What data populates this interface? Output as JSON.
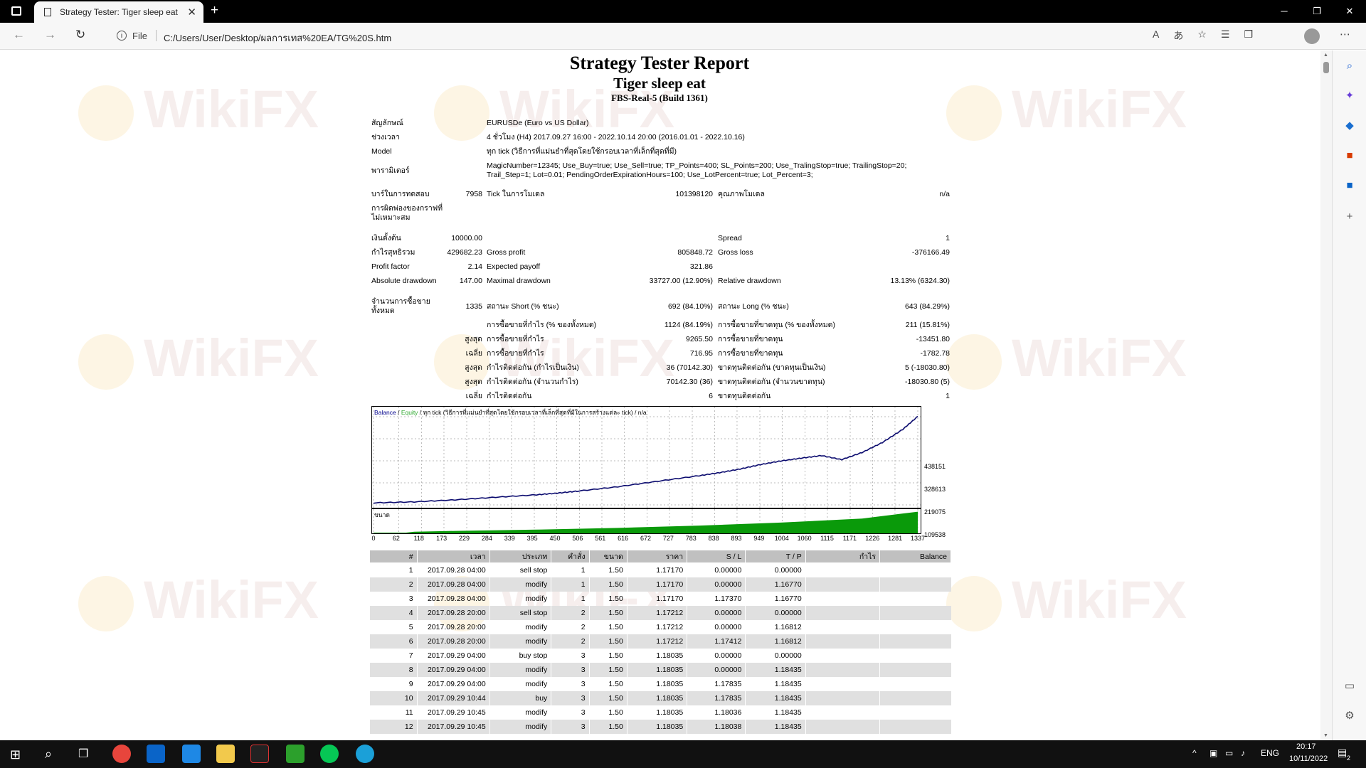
{
  "browser": {
    "tab_title": "Strategy Tester: Tiger sleep eat",
    "new_tab": "+",
    "file_label": "File",
    "url": "C:/Users/User/Desktop/ผลการเทส%20EA/TG%20S.htm"
  },
  "report": {
    "title": "Strategy Tester Report",
    "ea_name": "Tiger sleep eat",
    "server": "FBS-Real-5 (Build 1361)"
  },
  "info": [
    {
      "label": "สัญลักษณ์",
      "value": "EURUSDe (Euro vs US Dollar)"
    },
    {
      "label": "ช่วงเวลา",
      "value": "4 ชั่วโมง (H4) 2017.09.27 16:00 - 2022.10.14 20:00 (2016.01.01 - 2022.10.16)"
    },
    {
      "label": "Model",
      "value": "ทุก tick (วิธีการที่แม่นยำที่สุดโดยใช้กรอบเวลาที่เล็กที่สุดที่มี)"
    },
    {
      "label": "พารามิเตอร์",
      "value": "MagicNumber=12345; Use_Buy=true; Use_Sell=true; TP_Points=400; SL_Points=200; Use_TralingStop=true; TrailingStop=20;",
      "value2": "Trail_Step=1; Lot=0.01; PendingOrderExpirationHours=100; Use_LotPercent=true; Lot_Percent=3;"
    }
  ],
  "bars_row": {
    "bars_label": "บาร์ในการทดสอบ",
    "bars_value": "7958",
    "ticks_label": "Tick ในการโมเดล",
    "ticks_value": "101398120",
    "quality_label": "คุณภาพโมเดล",
    "quality_value": "n/a",
    "mismatch_label1": "การผิดพ่องของกราฟที่",
    "mismatch_label2": "ไม่เหมาะสม"
  },
  "stats": {
    "deposit_label": "เงินตั้งต้น",
    "deposit": "10000.00",
    "spread_label": "Spread",
    "spread": "1",
    "net_label": "กำไรสุทธิรวม",
    "net": "429682.23",
    "gp_label": "Gross profit",
    "gp": "805848.72",
    "gl_label": "Gross loss",
    "gl": "-376166.49",
    "pf_label": "Profit factor",
    "pf": "2.14",
    "ep_label": "Expected payoff",
    "ep": "321.86",
    "ad_label": "Absolute drawdown",
    "ad": "147.00",
    "md_label": "Maximal drawdown",
    "md": "33727.00 (12.90%)",
    "rd_label": "Relative drawdown",
    "rd": "13.13% (6324.30)",
    "total_label1": "จำนวนการซื้อขาย",
    "total_label2": "ทั้งหมด",
    "total": "1335",
    "short_label": "สถานะ Short (% ชนะ)",
    "short": "692 (84.10%)",
    "long_label": "สถานะ Long (% ชนะ)",
    "long": "643 (84.29%)",
    "win_label": "การซื้อขายที่กำไร (% ของทั้งหมด)",
    "win": "1124 (84.19%)",
    "loss_label": "การซื้อขายที่ขาดทุน (% ของทั้งหมด)",
    "loss": "211 (15.81%)",
    "max_label": "สูงสุด",
    "avg_label": "เฉลี่ย",
    "lp_label": "การซื้อขายที่กำไร",
    "lp": "9265.50",
    "ll_label": "การซื้อขายที่ขาดทุน",
    "ll": "-13451.80",
    "ap": "716.95",
    "al": "-1782.78",
    "mcw_label": "กำไรติดต่อกัน (กำไรเป็นเงิน)",
    "mcw": "36 (70142.30)",
    "mcl_label": "ขาดทุนติดต่อกัน (ขาดทุนเป็นเงิน)",
    "mcl": "5 (-18030.80)",
    "mcp_label": "กำไรติดต่อกัน (จำนวนกำไร)",
    "mcp": "70142.30 (36)",
    "mcll_label": "ขาดทุนติดต่อกัน (จำนวนขาดทุน)",
    "mcll": "-18030.80 (5)",
    "acw_label": "กำไรติดต่อกัน",
    "acw": "6",
    "acl_label": "ขาดทุนติดต่อกัน",
    "acl": "1"
  },
  "chart_data": {
    "type": "line",
    "legend_balance": "Balance",
    "legend_sep": " / ",
    "legend_equity": "Equity",
    "legend_rest": " / ทุก tick (วิธีการที่แม่นยำที่สุดโดยใช้กรอบเวลาที่เล็กที่สุดที่มีในการสร้างแต่ละ tick) / n/a",
    "volume_label": "ขนาด",
    "y_ticks": [
      "438151",
      "328613",
      "219075",
      "109538",
      "0"
    ],
    "x_ticks": [
      "0",
      "62",
      "118",
      "173",
      "229",
      "284",
      "339",
      "395",
      "450",
      "506",
      "561",
      "616",
      "672",
      "727",
      "783",
      "838",
      "893",
      "949",
      "1004",
      "1060",
      "1115",
      "1171",
      "1226",
      "1281",
      "1337"
    ],
    "ylim": [
      0,
      438151
    ],
    "xlim": [
      0,
      1337
    ],
    "series": [
      {
        "name": "Balance",
        "x": [
          0,
          100,
          200,
          300,
          400,
          450,
          500,
          600,
          700,
          800,
          850,
          900,
          950,
          1000,
          1050,
          1100,
          1150,
          1200,
          1250,
          1300,
          1337
        ],
        "values": [
          10000,
          15000,
          25000,
          38000,
          50000,
          58000,
          68000,
          90000,
          118000,
          145000,
          160000,
          178000,
          200000,
          218000,
          232000,
          245000,
          225000,
          260000,
          310000,
          375000,
          439682
        ]
      }
    ],
    "volume": {
      "x": [
        0,
        80,
        100,
        200,
        400,
        600,
        800,
        1000,
        1200,
        1337
      ],
      "values": [
        0,
        0,
        0.04,
        0.08,
        0.14,
        0.22,
        0.33,
        0.47,
        0.66,
        0.98
      ]
    }
  },
  "table": {
    "headers": [
      "#",
      "เวลา",
      "ประเภท",
      "คำสั่ง",
      "ขนาด",
      "ราคา",
      "S / L",
      "T / P",
      "กำไร",
      "Balance"
    ],
    "rows": [
      [
        "1",
        "2017.09.28 04:00",
        "sell stop",
        "1",
        "1.50",
        "1.17170",
        "0.00000",
        "0.00000",
        "",
        ""
      ],
      [
        "2",
        "2017.09.28 04:00",
        "modify",
        "1",
        "1.50",
        "1.17170",
        "0.00000",
        "1.16770",
        "",
        ""
      ],
      [
        "3",
        "2017.09.28 04:00",
        "modify",
        "1",
        "1.50",
        "1.17170",
        "1.17370",
        "1.16770",
        "",
        ""
      ],
      [
        "4",
        "2017.09.28 20:00",
        "sell stop",
        "2",
        "1.50",
        "1.17212",
        "0.00000",
        "0.00000",
        "",
        ""
      ],
      [
        "5",
        "2017.09.28 20:00",
        "modify",
        "2",
        "1.50",
        "1.17212",
        "0.00000",
        "1.16812",
        "",
        ""
      ],
      [
        "6",
        "2017.09.28 20:00",
        "modify",
        "2",
        "1.50",
        "1.17212",
        "1.17412",
        "1.16812",
        "",
        ""
      ],
      [
        "7",
        "2017.09.29 04:00",
        "buy stop",
        "3",
        "1.50",
        "1.18035",
        "0.00000",
        "0.00000",
        "",
        ""
      ],
      [
        "8",
        "2017.09.29 04:00",
        "modify",
        "3",
        "1.50",
        "1.18035",
        "0.00000",
        "1.18435",
        "",
        ""
      ],
      [
        "9",
        "2017.09.29 04:00",
        "modify",
        "3",
        "1.50",
        "1.18035",
        "1.17835",
        "1.18435",
        "",
        ""
      ],
      [
        "10",
        "2017.09.29 10:44",
        "buy",
        "3",
        "1.50",
        "1.18035",
        "1.17835",
        "1.18435",
        "",
        ""
      ],
      [
        "11",
        "2017.09.29 10:45",
        "modify",
        "3",
        "1.50",
        "1.18035",
        "1.18036",
        "1.18435",
        "",
        ""
      ],
      [
        "12",
        "2017.09.29 10:45",
        "modify",
        "3",
        "1.50",
        "1.18035",
        "1.18038",
        "1.18435",
        "",
        ""
      ]
    ]
  },
  "watermark": "WikiFX",
  "taskbar": {
    "lang": "ENG",
    "time": "20:17",
    "date": "10/11/2022",
    "notif": "2"
  }
}
